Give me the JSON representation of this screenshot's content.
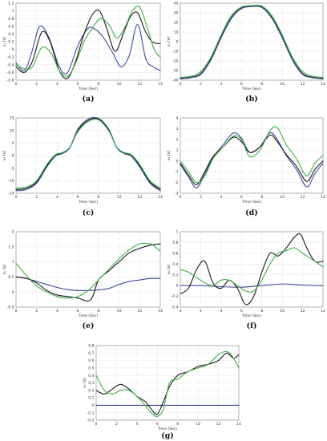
{
  "figure": {
    "colors": {
      "black": "#1a1a1a",
      "blue": "#3d4a9c",
      "green": "#3cb044",
      "zero": "#2a3a9a"
    }
  },
  "chart_data": [
    {
      "id": "a",
      "caption": "(a)",
      "type": "line",
      "xlabel": "Time (Sec)",
      "ylabel": "v₁ (V)",
      "xlim": [
        0,
        14
      ],
      "ylim": [
        -0.8,
        1.2
      ],
      "xticks": [
        0,
        2,
        4,
        6,
        8,
        10,
        12,
        14
      ],
      "yticks": [
        -0.8,
        -0.6,
        -0.4,
        -0.2,
        0,
        0.2,
        0.4,
        0.6,
        0.8,
        1,
        1.2
      ],
      "ytick_labels": [
        "-0.8",
        "-0.6",
        "-0.4",
        "-0.2",
        "0",
        "0.2",
        "0.4",
        "0.6",
        "0.8",
        "1",
        "1.2"
      ],
      "series": [
        {
          "color": "#3d4a9c",
          "x": [
            0,
            0.8,
            1.5,
            2.3,
            3.2,
            4.2,
            5.0,
            6.0,
            7.0,
            7.8,
            8.5,
            9.4,
            10.2,
            11.0,
            11.8,
            12.6,
            13.3,
            14
          ],
          "y": [
            -0.35,
            -0.55,
            -0.1,
            0.6,
            0.3,
            -0.45,
            -0.6,
            0.1,
            0.55,
            0.5,
            0.3,
            -0.1,
            -0.45,
            -0.15,
            0.65,
            -0.25,
            -0.45,
            -0.55
          ]
        },
        {
          "color": "#1a1a1a",
          "x": [
            0,
            0.8,
            1.6,
            2.5,
            3.3,
            4.2,
            5.0,
            5.8,
            6.6,
            7.4,
            8.1,
            8.8,
            9.6,
            10.4,
            11.1,
            11.8,
            12.5,
            13.2,
            14
          ],
          "y": [
            -0.45,
            -0.6,
            -0.3,
            0.45,
            0.2,
            -0.55,
            -0.75,
            -0.3,
            0.4,
            0.9,
            1.0,
            0.55,
            -0.05,
            0.4,
            0.85,
            0.95,
            0.5,
            0.2,
            0.15
          ]
        },
        {
          "color": "#3cb044",
          "x": [
            0,
            0.8,
            1.6,
            2.5,
            3.4,
            4.2,
            5.0,
            5.8,
            6.6,
            7.4,
            8.2,
            9.0,
            9.8,
            10.6,
            11.3,
            12.0,
            12.7,
            13.4,
            14
          ],
          "y": [
            -0.4,
            -0.5,
            -0.45,
            0.05,
            -0.1,
            -0.55,
            -0.7,
            -0.35,
            0.2,
            0.55,
            0.8,
            0.65,
            0.3,
            0.6,
            1.0,
            1.1,
            0.6,
            0.0,
            -0.2
          ]
        }
      ]
    },
    {
      "id": "b",
      "caption": "(b)",
      "type": "line",
      "xlabel": "Time (Sec)",
      "ylabel": "v₂ (V)",
      "xlim": [
        0,
        14
      ],
      "ylim": [
        -40,
        40
      ],
      "xticks": [
        0,
        2,
        4,
        6,
        8,
        10,
        12,
        14
      ],
      "yticks": [
        -40,
        -30,
        -20,
        -10,
        0,
        10,
        20,
        30,
        40
      ],
      "ytick_labels": [
        "-40",
        "-30",
        "-20",
        "-10",
        "0",
        "10",
        "20",
        "30",
        "40"
      ],
      "series": [
        {
          "color": "#1a1a1a",
          "x": [
            0,
            1,
            2,
            3,
            4,
            5,
            6,
            7,
            8,
            9,
            10,
            11,
            12,
            13,
            14
          ],
          "y": [
            -38,
            -37,
            -33,
            -18,
            5,
            25,
            35,
            37,
            36,
            25,
            5,
            -18,
            -33,
            -37,
            -38
          ]
        },
        {
          "color": "#3d4a9c",
          "x": [
            0,
            1,
            2,
            3,
            4,
            5,
            6,
            7,
            8,
            9,
            10,
            11,
            12,
            13,
            14
          ],
          "y": [
            -38.5,
            -37.5,
            -34,
            -19,
            4,
            24,
            34.5,
            36.5,
            35.5,
            24,
            4,
            -19,
            -34,
            -37.5,
            -38.5
          ]
        },
        {
          "color": "#3cb044",
          "x": [
            0,
            1,
            2,
            3,
            4,
            5,
            6,
            7,
            8,
            9,
            10,
            11,
            12,
            13,
            14
          ],
          "y": [
            -37,
            -36,
            -31,
            -16,
            7,
            27,
            36,
            37.5,
            37,
            27,
            7,
            -16,
            -31,
            -36,
            -37
          ]
        }
      ]
    },
    {
      "id": "c",
      "caption": "(c)",
      "type": "line",
      "xlabel": "Time (Sec)",
      "ylabel": "v₃ (V)",
      "xlim": [
        0,
        14
      ],
      "ylim": [
        -15,
        15
      ],
      "xticks": [
        0,
        2,
        4,
        6,
        8,
        10,
        12,
        14
      ],
      "yticks": [
        -15,
        -10,
        -5,
        0,
        5,
        10,
        15
      ],
      "ytick_labels": [
        "-15",
        "-10",
        "-5",
        "0",
        "5",
        "10",
        "15"
      ],
      "series": [
        {
          "color": "#1a1a1a",
          "x": [
            0,
            1,
            2,
            3,
            3.8,
            4.5,
            5.2,
            6,
            7,
            8,
            9,
            9.8,
            10.5,
            11.2,
            12,
            13,
            14
          ],
          "y": [
            -13.5,
            -13,
            -10.5,
            -4,
            0,
            1,
            3,
            10,
            14,
            14.5,
            10,
            3,
            1,
            0,
            -4,
            -10.5,
            -13.5
          ]
        },
        {
          "color": "#3d4a9c",
          "x": [
            0,
            1,
            2,
            3,
            3.8,
            4.5,
            5.2,
            6,
            7,
            8,
            9,
            9.8,
            10.5,
            11.2,
            12,
            13,
            14
          ],
          "y": [
            -14,
            -13.5,
            -11,
            -4.5,
            -0.3,
            0.8,
            3,
            10.5,
            14.5,
            14.8,
            10.5,
            3,
            0.8,
            -0.3,
            -4.5,
            -11,
            -14
          ]
        },
        {
          "color": "#3cb044",
          "x": [
            0,
            1,
            2,
            3,
            3.8,
            4.5,
            5.2,
            6,
            7,
            8,
            9,
            9.8,
            10.5,
            11.2,
            12,
            13,
            14
          ],
          "y": [
            -13,
            -12.5,
            -10,
            -3.5,
            0.3,
            1.2,
            3.2,
            9.5,
            13.5,
            14.2,
            9.8,
            3.2,
            1.2,
            0.3,
            -3.5,
            -10,
            -13
          ]
        }
      ]
    },
    {
      "id": "d",
      "caption": "(d)",
      "type": "line",
      "xlabel": "Time (Sec)",
      "ylabel": "v₄ (V)",
      "xlim": [
        0,
        14
      ],
      "ylim": [
        -3,
        4
      ],
      "xticks": [
        0,
        2,
        4,
        6,
        8,
        10,
        12,
        14
      ],
      "yticks": [
        -3,
        -2,
        -1,
        0,
        1,
        2,
        3,
        4
      ],
      "ytick_labels": [
        "-3",
        "-2",
        "-1",
        "0",
        "1",
        "2",
        "3",
        "4"
      ],
      "series": [
        {
          "color": "#3d4a9c",
          "x": [
            0,
            0.8,
            1.6,
            2.4,
            3.2,
            4.2,
            5.2,
            6.0,
            6.8,
            7.8,
            8.8,
            9.5,
            10.4,
            11.4,
            12.4,
            13.2,
            14
          ],
          "y": [
            -0.3,
            -1.5,
            -2.5,
            -1.2,
            0.3,
            1.5,
            2.6,
            2.1,
            0.8,
            1.3,
            2.6,
            2.0,
            0.5,
            -0.8,
            -2.4,
            -1.2,
            -0.2
          ]
        },
        {
          "color": "#1a1a1a",
          "x": [
            0,
            0.8,
            1.6,
            2.4,
            3.2,
            4.2,
            5.2,
            6.0,
            6.8,
            7.8,
            8.8,
            9.5,
            10.4,
            11.4,
            12.4,
            13.2,
            14
          ],
          "y": [
            -0.2,
            -1.3,
            -2.2,
            -1.0,
            0.4,
            1.3,
            2.2,
            1.8,
            0.8,
            1.3,
            2.4,
            1.8,
            0.6,
            -0.5,
            -1.9,
            -0.8,
            0.0
          ]
        },
        {
          "color": "#3cb044",
          "x": [
            0,
            0.8,
            1.6,
            2.4,
            3.2,
            4.2,
            5.2,
            6.0,
            6.8,
            7.8,
            8.8,
            9.5,
            10.4,
            11.4,
            12.4,
            13.2,
            14
          ],
          "y": [
            0.0,
            -1.0,
            -2.0,
            -1.4,
            0.2,
            1.3,
            2.3,
            2.0,
            0.4,
            1.0,
            2.8,
            3.1,
            1.5,
            0.2,
            -1.4,
            -0.2,
            0.5
          ]
        }
      ]
    },
    {
      "id": "e",
      "caption": "(e)",
      "type": "line",
      "xlabel": "Time (Sec)",
      "ylabel": "v₅ (V)",
      "xlim": [
        0,
        14
      ],
      "ylim": [
        -0.5,
        2
      ],
      "xticks": [
        0,
        2,
        4,
        6,
        8,
        10,
        12,
        14
      ],
      "yticks": [
        -0.5,
        0,
        0.5,
        1,
        1.5,
        2
      ],
      "ytick_labels": [
        "-0.5",
        "0",
        "0.5",
        "1",
        "1.5",
        "2"
      ],
      "series": [
        {
          "color": "#3d4a9c",
          "x": [
            0,
            1,
            2,
            3,
            4,
            5,
            6,
            7,
            8,
            9,
            10,
            11,
            12,
            13,
            14
          ],
          "y": [
            0.5,
            0.45,
            0.35,
            0.25,
            0.15,
            0.08,
            0.05,
            0.05,
            0.07,
            0.12,
            0.25,
            0.35,
            0.4,
            0.45,
            0.45
          ]
        },
        {
          "color": "#1a1a1a",
          "x": [
            0,
            1,
            2,
            3,
            4,
            5,
            6,
            7,
            7.5,
            8,
            9,
            10,
            11,
            12,
            13,
            14
          ],
          "y": [
            0.5,
            0.45,
            0.3,
            0.05,
            -0.1,
            -0.15,
            -0.2,
            -0.3,
            -0.1,
            0.4,
            0.7,
            1.0,
            1.3,
            1.45,
            1.55,
            1.6
          ]
        },
        {
          "color": "#3cb044",
          "x": [
            0,
            1,
            2,
            3,
            4,
            5,
            6,
            7,
            8,
            9,
            10,
            11,
            12,
            13,
            13.5,
            14
          ],
          "y": [
            0.95,
            0.55,
            0.2,
            0.0,
            -0.15,
            -0.2,
            -0.15,
            0.05,
            0.4,
            0.75,
            1.1,
            1.4,
            1.6,
            1.6,
            1.5,
            1.35
          ]
        }
      ]
    },
    {
      "id": "f",
      "caption": "(f)",
      "type": "line",
      "xlabel": "Time (Sec)",
      "ylabel": "v₆ (V)",
      "xlim": [
        0,
        14
      ],
      "ylim": [
        -0.4,
        1
      ],
      "xticks": [
        0,
        2,
        4,
        6,
        8,
        10,
        12,
        14
      ],
      "yticks": [
        -0.4,
        -0.2,
        0,
        0.2,
        0.4,
        0.6,
        0.8,
        1
      ],
      "ytick_labels": [
        "-0.4",
        "-0.2",
        "0",
        "0.2",
        "0.4",
        "0.6",
        "0.8",
        "1"
      ],
      "series": [
        {
          "color": "#3d4a9c",
          "x": [
            0,
            2,
            4,
            6,
            8,
            10,
            12,
            14
          ],
          "y": [
            0.0,
            0.0,
            -0.02,
            -0.03,
            0.0,
            0.03,
            0.01,
            0.0
          ]
        },
        {
          "color": "#1a1a1a",
          "x": [
            0,
            0.8,
            1.6,
            2.4,
            3.2,
            4.0,
            4.8,
            5.6,
            6.4,
            7.2,
            8.0,
            8.8,
            9.6,
            10.4,
            11.2,
            11.8,
            12.4,
            13.2,
            14
          ],
          "y": [
            -0.15,
            -0.05,
            0.3,
            0.45,
            0.05,
            -0.05,
            0.1,
            -0.05,
            -0.35,
            -0.2,
            0.25,
            0.6,
            0.55,
            0.7,
            0.9,
            0.95,
            0.7,
            0.45,
            0.45
          ]
        },
        {
          "color": "#3cb044",
          "x": [
            0,
            0.8,
            1.6,
            2.4,
            3.2,
            4.0,
            4.8,
            5.6,
            6.4,
            7.2,
            8.0,
            8.8,
            9.6,
            10.4,
            11.2,
            12.0,
            12.8,
            13.6,
            14
          ],
          "y": [
            0.3,
            0.25,
            0.15,
            0.05,
            0.0,
            0.1,
            0.1,
            0.0,
            -0.1,
            -0.1,
            0.1,
            0.4,
            0.6,
            0.65,
            0.7,
            0.6,
            0.5,
            0.4,
            0.35
          ]
        }
      ]
    },
    {
      "id": "g",
      "caption": "(g)",
      "type": "line",
      "xlabel": "Time (Sec)",
      "ylabel": "v₇ (V)",
      "xlim": [
        0,
        14
      ],
      "ylim": [
        -0.2,
        0.8
      ],
      "xticks": [
        0,
        2,
        4,
        6,
        8,
        10,
        12,
        14
      ],
      "yticks": [
        -0.2,
        -0.1,
        0,
        0.1,
        0.2,
        0.3,
        0.4,
        0.5,
        0.6,
        0.7,
        0.8
      ],
      "ytick_labels": [
        "-0.2",
        "-0.1",
        "0",
        "0.1",
        "0.2",
        "0.3",
        "0.4",
        "0.5",
        "0.6",
        "0.7",
        "0.8"
      ],
      "series": [
        {
          "color": "#2a3a9a",
          "x": [
            0,
            14
          ],
          "y": [
            0,
            0
          ]
        },
        {
          "color": "#1a1a1a",
          "x": [
            0,
            0.8,
            1.6,
            2.4,
            3.2,
            4.0,
            4.8,
            5.4,
            6.0,
            6.6,
            7.2,
            8.0,
            9.0,
            10.0,
            11.0,
            12.0,
            12.8,
            13.5,
            14
          ],
          "y": [
            0.2,
            0.15,
            0.22,
            0.28,
            0.22,
            0.12,
            0.05,
            -0.05,
            -0.12,
            0.05,
            0.25,
            0.4,
            0.45,
            0.52,
            0.55,
            0.6,
            0.7,
            0.63,
            0.68
          ]
        },
        {
          "color": "#3cb044",
          "x": [
            0,
            0.8,
            1.6,
            2.4,
            3.2,
            4.0,
            4.8,
            5.4,
            6.0,
            6.6,
            7.2,
            8.0,
            9.0,
            10.0,
            11.0,
            12.0,
            12.8,
            13.4,
            14
          ],
          "y": [
            0.4,
            0.2,
            0.15,
            0.2,
            0.2,
            0.12,
            0.0,
            -0.1,
            -0.15,
            -0.05,
            0.3,
            0.35,
            0.45,
            0.5,
            0.55,
            0.68,
            0.72,
            0.65,
            0.5
          ]
        }
      ]
    }
  ]
}
